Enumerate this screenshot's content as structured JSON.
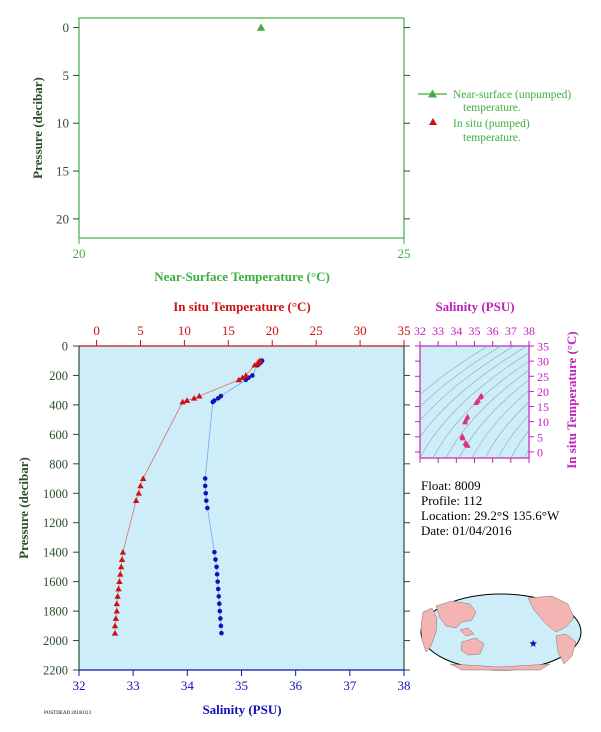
{
  "colors": {
    "green": "#3fae3f",
    "red": "#cc1111",
    "blue": "#1111bb",
    "magenta": "#c21fbf",
    "axis_green": "#2d4d2d",
    "plot_bg": "#cdeef8",
    "land": "#f4b4b4",
    "ocean": "#cdeef8"
  },
  "top_panel": {
    "ylabel": "Pressure (decibar)",
    "xlabel": "Near-Surface Temperature (°C)"
  },
  "legend": {
    "near_surface_1": "Near-surface (unpumped)",
    "near_surface_2": "temperature.",
    "in_situ_1": "In situ (pumped)",
    "in_situ_2": "temperature."
  },
  "main_panel": {
    "top_xlabel": "In situ Temperature (°C)",
    "bottom_xlabel": "Salinity (PSU)",
    "ylabel": "Pressure (decibar)"
  },
  "ts_panel": {
    "title": "Salinity (PSU)",
    "ylabel": "In situ Temperature (°C)"
  },
  "info": {
    "float": "Float:  8009",
    "profile": "Profile:  112",
    "location": "Location:  29.2°S  135.6°W",
    "date": "Date:  01/04/2016"
  },
  "footer": "POSTDEAD 20160113",
  "chart_data": [
    {
      "type": "scatter",
      "name": "near-surface-temperature",
      "xlabel": "Near-Surface Temperature (°C)",
      "ylabel": "Pressure (decibar)",
      "xlim": [
        20,
        25
      ],
      "ylim": [
        22,
        -1
      ],
      "x_ticks": [
        20,
        25
      ],
      "y_ticks": [
        0,
        5,
        10,
        15,
        20
      ],
      "series": [
        {
          "points": [
            {
              "x": 22.8,
              "y": 0
            }
          ]
        }
      ]
    },
    {
      "type": "line",
      "name": "temperature-salinity-profile",
      "ylabel": "Pressure (decibar)",
      "ylim": [
        2200,
        0
      ],
      "y_ticks": [
        0,
        200,
        400,
        600,
        800,
        1000,
        1200,
        1400,
        1600,
        1800,
        2000,
        2200
      ],
      "temperature_axis": {
        "label": "In situ Temperature (°C)",
        "lim": [
          -2,
          35
        ],
        "ticks": [
          0,
          5,
          10,
          15,
          20,
          25,
          30,
          35
        ]
      },
      "salinity_axis": {
        "label": "Salinity (PSU)",
        "lim": [
          32,
          38
        ],
        "ticks": [
          32,
          33,
          34,
          35,
          36,
          37,
          38
        ]
      },
      "series": [
        {
          "variable": "temperature",
          "points": [
            {
              "p": 100,
              "v": 18.6
            },
            {
              "p": 110,
              "v": 18.4
            },
            {
              "p": 120,
              "v": 18.3
            },
            {
              "p": 130,
              "v": 18.0
            },
            {
              "p": 200,
              "v": 17.0
            },
            {
              "p": 215,
              "v": 16.6
            },
            {
              "p": 230,
              "v": 16.2
            },
            {
              "p": 340,
              "v": 11.7
            },
            {
              "p": 355,
              "v": 11.1
            },
            {
              "p": 370,
              "v": 10.3
            },
            {
              "p": 380,
              "v": 9.8
            },
            {
              "p": 900,
              "v": 5.3
            },
            {
              "p": 950,
              "v": 5.0
            },
            {
              "p": 1000,
              "v": 4.8
            },
            {
              "p": 1050,
              "v": 4.5
            },
            {
              "p": 1400,
              "v": 3.0
            },
            {
              "p": 1450,
              "v": 2.9
            },
            {
              "p": 1500,
              "v": 2.8
            },
            {
              "p": 1550,
              "v": 2.7
            },
            {
              "p": 1600,
              "v": 2.6
            },
            {
              "p": 1650,
              "v": 2.5
            },
            {
              "p": 1700,
              "v": 2.4
            },
            {
              "p": 1750,
              "v": 2.3
            },
            {
              "p": 1800,
              "v": 2.3
            },
            {
              "p": 1850,
              "v": 2.2
            },
            {
              "p": 1900,
              "v": 2.1
            },
            {
              "p": 1950,
              "v": 2.1
            }
          ]
        },
        {
          "variable": "salinity",
          "points": [
            {
              "p": 100,
              "v": 35.38
            },
            {
              "p": 110,
              "v": 35.36
            },
            {
              "p": 120,
              "v": 35.33
            },
            {
              "p": 130,
              "v": 35.3
            },
            {
              "p": 200,
              "v": 35.2
            },
            {
              "p": 215,
              "v": 35.13
            },
            {
              "p": 230,
              "v": 35.08
            },
            {
              "p": 340,
              "v": 34.62
            },
            {
              "p": 355,
              "v": 34.57
            },
            {
              "p": 370,
              "v": 34.5
            },
            {
              "p": 380,
              "v": 34.47
            },
            {
              "p": 900,
              "v": 34.33
            },
            {
              "p": 950,
              "v": 34.33
            },
            {
              "p": 1000,
              "v": 34.34
            },
            {
              "p": 1050,
              "v": 34.35
            },
            {
              "p": 1100,
              "v": 34.37
            },
            {
              "p": 1400,
              "v": 34.5
            },
            {
              "p": 1450,
              "v": 34.52
            },
            {
              "p": 1500,
              "v": 34.54
            },
            {
              "p": 1550,
              "v": 34.55
            },
            {
              "p": 1600,
              "v": 34.56
            },
            {
              "p": 1650,
              "v": 34.57
            },
            {
              "p": 1700,
              "v": 34.58
            },
            {
              "p": 1750,
              "v": 34.59
            },
            {
              "p": 1800,
              "v": 34.6
            },
            {
              "p": 1850,
              "v": 34.61
            },
            {
              "p": 1900,
              "v": 34.62
            },
            {
              "p": 1950,
              "v": 34.63
            }
          ]
        }
      ]
    },
    {
      "type": "scatter",
      "name": "ts-diagram",
      "xlabel": "Salinity (PSU)",
      "ylabel": "In situ Temperature (°C)",
      "xlim": [
        32,
        38
      ],
      "ylim": [
        -2,
        35
      ],
      "x_ticks": [
        32,
        33,
        34,
        35,
        36,
        37,
        38
      ],
      "y_ticks": [
        0,
        5,
        10,
        15,
        20,
        25,
        30,
        35
      ],
      "series": [
        {
          "points": [
            {
              "s": 35.38,
              "t": 18.6
            },
            {
              "s": 35.33,
              "t": 18.3
            },
            {
              "s": 35.3,
              "t": 18.0
            },
            {
              "s": 35.2,
              "t": 17.0
            },
            {
              "s": 35.13,
              "t": 16.6
            },
            {
              "s": 35.08,
              "t": 16.2
            },
            {
              "s": 34.62,
              "t": 11.7
            },
            {
              "s": 34.57,
              "t": 11.1
            },
            {
              "s": 34.5,
              "t": 10.3
            },
            {
              "s": 34.47,
              "t": 9.8
            },
            {
              "s": 34.33,
              "t": 5.3
            },
            {
              "s": 34.33,
              "t": 5.0
            },
            {
              "s": 34.34,
              "t": 4.8
            },
            {
              "s": 34.35,
              "t": 4.5
            },
            {
              "s": 34.5,
              "t": 3.0
            },
            {
              "s": 34.54,
              "t": 2.8
            },
            {
              "s": 34.56,
              "t": 2.6
            },
            {
              "s": 34.58,
              "t": 2.4
            },
            {
              "s": 34.6,
              "t": 2.3
            },
            {
              "s": 34.63,
              "t": 2.1
            }
          ]
        }
      ]
    }
  ],
  "map": {
    "marker": {
      "lat": -29.2,
      "lon": -135.6
    }
  }
}
